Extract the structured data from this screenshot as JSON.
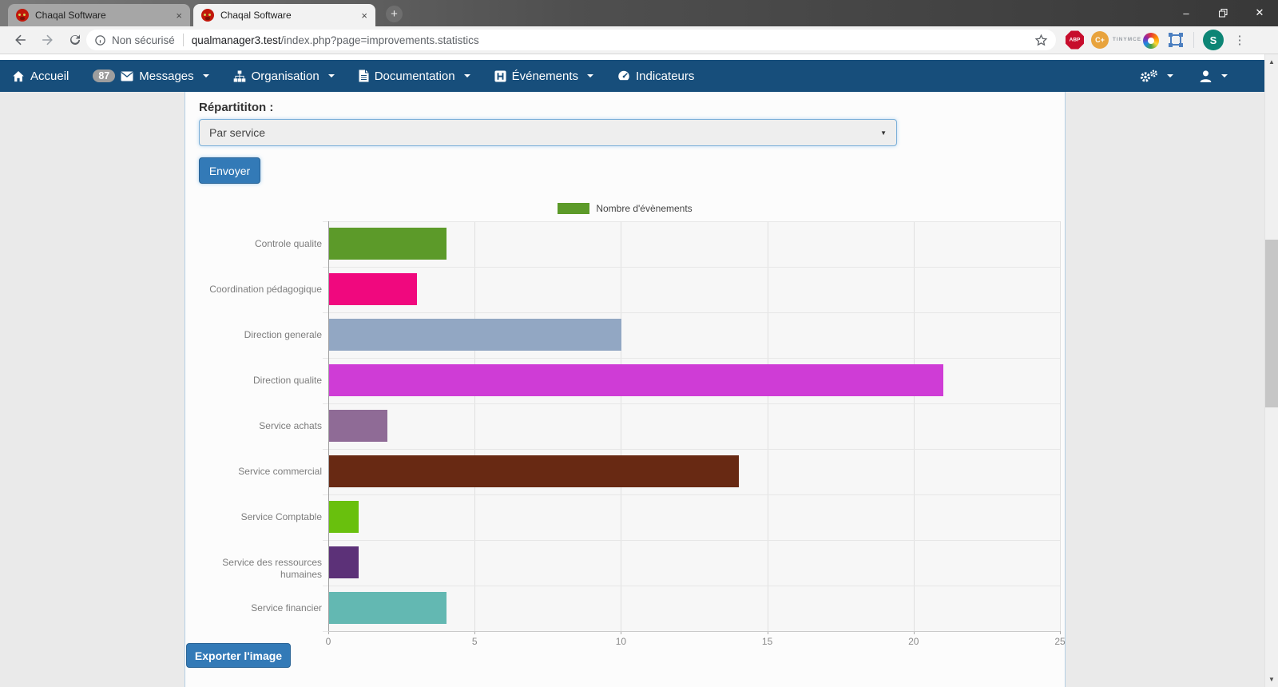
{
  "window": {
    "tabs": [
      {
        "title": "Chaqal Software"
      },
      {
        "title": "Chaqal Software"
      }
    ]
  },
  "browser": {
    "security_label": "Non sécurisé",
    "url_host": "qualmanager3.test",
    "url_path": "/index.php?page=improvements.statistics",
    "extensions": {
      "abp_label": "ABP",
      "cplus_label": "C+",
      "tinymce_label_1": "TINY",
      "tinymce_label_2": "MCE",
      "avatar_letter": "S"
    }
  },
  "icons": {
    "tab_close": "×",
    "new_tab": "+",
    "minimize": "–",
    "close": "✕",
    "kebab": "⋮",
    "select_caret": "▼",
    "scroll_up": "▲",
    "scroll_down": "▼"
  },
  "navbar": {
    "items": [
      {
        "label": "Accueil"
      },
      {
        "label": "Messages",
        "badge": "87"
      },
      {
        "label": "Organisation"
      },
      {
        "label": "Documentation"
      },
      {
        "label": "Événements"
      },
      {
        "label": "Indicateurs"
      }
    ]
  },
  "form": {
    "repartition_label": "Répartititon :",
    "select_value": "Par service",
    "submit_label": "Envoyer",
    "export_label": "Exporter l'image"
  },
  "colors": {
    "navbar_bg": "#174e7b",
    "primary_button": "#337ab7",
    "card_border": "#b4cfe4",
    "select_border": "#7cb0d9"
  },
  "chart_data": {
    "type": "bar",
    "orientation": "horizontal",
    "title": "",
    "legend": [
      {
        "name": "Nombre d'évènements",
        "color": "#5c9a29"
      }
    ],
    "legend_position": "top",
    "categories": [
      "Controle qualite",
      "Coordination pédagogique",
      "Direction generale",
      "Direction qualite",
      "Service achats",
      "Service commercial",
      "Service Comptable",
      "Service des ressources humaines",
      "Service financier"
    ],
    "values": [
      4,
      3,
      10,
      21,
      2,
      14,
      1,
      1,
      4
    ],
    "bar_colors": [
      "#5c9a29",
      "#f0087e",
      "#92a7c3",
      "#cf3cd6",
      "#8f6b96",
      "#682913",
      "#69c00d",
      "#5c3178",
      "#63b8b2"
    ],
    "xlabel": "",
    "ylabel": "",
    "xlim": [
      0,
      25
    ],
    "x_ticks": [
      0,
      5,
      10,
      15,
      20,
      25
    ],
    "grid": true
  }
}
